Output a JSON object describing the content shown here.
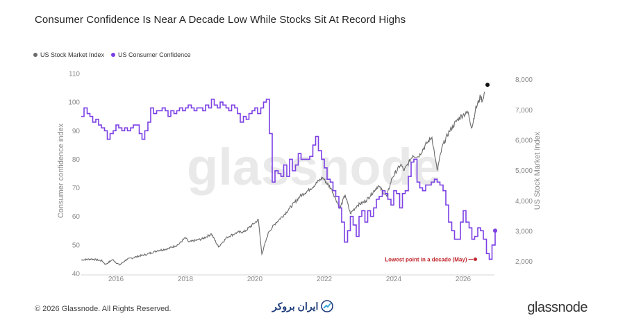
{
  "chart_data": {
    "type": "line",
    "title": "Consumer Confidence Is Near A Decade Low While Stocks Sit At Record Highs",
    "watermark": "glassnode",
    "legend": [
      {
        "name": "US Stock Market Index",
        "color": "#6b6b6b"
      },
      {
        "name": "US Consumer Confidence",
        "color": "#7b3fe4"
      }
    ],
    "legend_position": "top-left",
    "grid": false,
    "x_axis": {
      "ticks": [
        "2016",
        "2018",
        "2020",
        "2022",
        "2024",
        "2026"
      ],
      "range": [
        2015.0,
        2026.9
      ]
    },
    "y_left": {
      "label": "Consumer confidence index",
      "ticks": [
        "40",
        "50",
        "60",
        "70",
        "80",
        "90",
        "100",
        "110"
      ],
      "range": [
        40,
        110
      ]
    },
    "y_right": {
      "label": "US Stock Market Index",
      "ticks": [
        "2,000",
        "3,000",
        "4,000",
        "5,000",
        "6,000",
        "7,000",
        "8,000"
      ],
      "range": [
        1600,
        8200
      ]
    },
    "annotation": {
      "text": "Lowest point in a decade (May)",
      "color": "#c0262d",
      "x": 2026.35,
      "y": 45
    },
    "series": [
      {
        "name": "US Stock Market Index",
        "axis": "right",
        "color": "#6b6b6b",
        "points": [
          [
            2015.0,
            2050
          ],
          [
            2015.3,
            2080
          ],
          [
            2015.6,
            2020
          ],
          [
            2015.7,
            1900
          ],
          [
            2015.9,
            2060
          ],
          [
            2016.1,
            1880
          ],
          [
            2016.3,
            2060
          ],
          [
            2016.6,
            2160
          ],
          [
            2016.9,
            2240
          ],
          [
            2017.2,
            2360
          ],
          [
            2017.5,
            2420
          ],
          [
            2017.8,
            2560
          ],
          [
            2018.0,
            2780
          ],
          [
            2018.1,
            2640
          ],
          [
            2018.5,
            2750
          ],
          [
            2018.75,
            2910
          ],
          [
            2018.95,
            2480
          ],
          [
            2019.2,
            2800
          ],
          [
            2019.5,
            2960
          ],
          [
            2019.7,
            2980
          ],
          [
            2019.95,
            3230
          ],
          [
            2020.1,
            3380
          ],
          [
            2020.2,
            2240
          ],
          [
            2020.4,
            2980
          ],
          [
            2020.6,
            3270
          ],
          [
            2020.85,
            3550
          ],
          [
            2021.0,
            3750
          ],
          [
            2021.3,
            4150
          ],
          [
            2021.6,
            4400
          ],
          [
            2021.95,
            4770
          ],
          [
            2022.2,
            4400
          ],
          [
            2022.45,
            3750
          ],
          [
            2022.6,
            4200
          ],
          [
            2022.75,
            3580
          ],
          [
            2022.95,
            3850
          ],
          [
            2023.2,
            4000
          ],
          [
            2023.55,
            4500
          ],
          [
            2023.8,
            4150
          ],
          [
            2023.95,
            4750
          ],
          [
            2024.2,
            5200
          ],
          [
            2024.3,
            5000
          ],
          [
            2024.55,
            5500
          ],
          [
            2024.7,
            5450
          ],
          [
            2024.95,
            5900
          ],
          [
            2025.1,
            6100
          ],
          [
            2025.25,
            5000
          ],
          [
            2025.4,
            5800
          ],
          [
            2025.6,
            6300
          ],
          [
            2025.85,
            6700
          ],
          [
            2026.0,
            6850
          ],
          [
            2026.15,
            6900
          ],
          [
            2026.25,
            6400
          ],
          [
            2026.35,
            7000
          ],
          [
            2026.5,
            7450
          ],
          [
            2026.55,
            7300
          ],
          [
            2026.62,
            7600
          ]
        ],
        "end_value": 7600
      },
      {
        "name": "US Consumer Confidence",
        "axis": "left",
        "color": "#7b3fe4",
        "points": [
          [
            2015.0,
            95
          ],
          [
            2015.08,
            98
          ],
          [
            2015.17,
            96
          ],
          [
            2015.25,
            95
          ],
          [
            2015.33,
            93
          ],
          [
            2015.42,
            94
          ],
          [
            2015.5,
            92
          ],
          [
            2015.58,
            91
          ],
          [
            2015.67,
            90
          ],
          [
            2015.75,
            87
          ],
          [
            2015.83,
            89
          ],
          [
            2015.92,
            90
          ],
          [
            2016.0,
            92
          ],
          [
            2016.08,
            91
          ],
          [
            2016.17,
            90
          ],
          [
            2016.25,
            91
          ],
          [
            2016.33,
            90
          ],
          [
            2016.42,
            91
          ],
          [
            2016.5,
            92
          ],
          [
            2016.58,
            92
          ],
          [
            2016.67,
            89
          ],
          [
            2016.75,
            87
          ],
          [
            2016.83,
            90
          ],
          [
            2016.92,
            93
          ],
          [
            2017.0,
            98
          ],
          [
            2017.08,
            96
          ],
          [
            2017.17,
            97
          ],
          [
            2017.25,
            97
          ],
          [
            2017.33,
            98
          ],
          [
            2017.42,
            97
          ],
          [
            2017.5,
            95
          ],
          [
            2017.58,
            97
          ],
          [
            2017.67,
            96
          ],
          [
            2017.75,
            97
          ],
          [
            2017.83,
            98
          ],
          [
            2017.92,
            97
          ],
          [
            2018.0,
            98
          ],
          [
            2018.08,
            99
          ],
          [
            2018.17,
            98
          ],
          [
            2018.25,
            97
          ],
          [
            2018.33,
            98
          ],
          [
            2018.42,
            98
          ],
          [
            2018.5,
            97
          ],
          [
            2018.58,
            99
          ],
          [
            2018.67,
            98
          ],
          [
            2018.75,
            101
          ],
          [
            2018.83,
            99
          ],
          [
            2018.92,
            98
          ],
          [
            2019.0,
            100
          ],
          [
            2019.08,
            99
          ],
          [
            2019.17,
            98
          ],
          [
            2019.25,
            97
          ],
          [
            2019.33,
            99
          ],
          [
            2019.42,
            98
          ],
          [
            2019.5,
            96
          ],
          [
            2019.58,
            93
          ],
          [
            2019.67,
            95
          ],
          [
            2019.75,
            94
          ],
          [
            2019.83,
            96
          ],
          [
            2019.92,
            97
          ],
          [
            2020.0,
            98
          ],
          [
            2020.08,
            96
          ],
          [
            2020.17,
            98
          ],
          [
            2020.25,
            100
          ],
          [
            2020.33,
            101
          ],
          [
            2020.42,
            89
          ],
          [
            2020.5,
            72
          ],
          [
            2020.58,
            76
          ],
          [
            2020.67,
            75
          ],
          [
            2020.75,
            74
          ],
          [
            2020.83,
            78
          ],
          [
            2020.92,
            74
          ],
          [
            2021.0,
            80
          ],
          [
            2021.08,
            76
          ],
          [
            2021.17,
            78
          ],
          [
            2021.25,
            82
          ],
          [
            2021.33,
            80
          ],
          [
            2021.42,
            80
          ],
          [
            2021.5,
            80
          ],
          [
            2021.58,
            81
          ],
          [
            2021.67,
            85
          ],
          [
            2021.75,
            88
          ],
          [
            2021.83,
            83
          ],
          [
            2021.92,
            80
          ],
          [
            2022.0,
            77
          ],
          [
            2022.08,
            73
          ],
          [
            2022.17,
            72
          ],
          [
            2022.25,
            69
          ],
          [
            2022.33,
            67
          ],
          [
            2022.42,
            63
          ],
          [
            2022.5,
            58
          ],
          [
            2022.58,
            51
          ],
          [
            2022.67,
            55
          ],
          [
            2022.75,
            60
          ],
          [
            2022.83,
            57
          ],
          [
            2022.92,
            53
          ],
          [
            2023.0,
            60
          ],
          [
            2023.08,
            62
          ],
          [
            2023.17,
            58
          ],
          [
            2023.25,
            62
          ],
          [
            2023.33,
            60
          ],
          [
            2023.42,
            63
          ],
          [
            2023.5,
            66
          ],
          [
            2023.58,
            67
          ],
          [
            2023.67,
            69
          ],
          [
            2023.75,
            68
          ],
          [
            2023.83,
            66
          ],
          [
            2023.92,
            64
          ],
          [
            2024.0,
            69
          ],
          [
            2024.08,
            68
          ],
          [
            2024.17,
            63
          ],
          [
            2024.25,
            68
          ],
          [
            2024.33,
            69
          ],
          [
            2024.42,
            74
          ],
          [
            2024.5,
            79
          ],
          [
            2024.58,
            80
          ],
          [
            2024.67,
            72
          ],
          [
            2024.75,
            70
          ],
          [
            2024.83,
            69
          ],
          [
            2024.92,
            71
          ],
          [
            2025.0,
            71
          ],
          [
            2025.08,
            72
          ],
          [
            2025.17,
            73
          ],
          [
            2025.25,
            72
          ],
          [
            2025.33,
            71
          ],
          [
            2025.42,
            69
          ],
          [
            2025.5,
            64
          ],
          [
            2025.58,
            58
          ],
          [
            2025.67,
            55
          ],
          [
            2025.75,
            52
          ],
          [
            2025.83,
            52
          ],
          [
            2025.92,
            58
          ],
          [
            2026.0,
            62
          ],
          [
            2026.08,
            58
          ],
          [
            2026.17,
            56
          ],
          [
            2026.25,
            52
          ],
          [
            2026.33,
            53
          ],
          [
            2026.42,
            56
          ],
          [
            2026.5,
            55
          ],
          [
            2026.58,
            52
          ],
          [
            2026.67,
            47
          ],
          [
            2026.75,
            45
          ],
          [
            2026.83,
            50
          ],
          [
            2026.92,
            55
          ]
        ],
        "end_value": 55
      }
    ]
  },
  "footer": {
    "copyright": "© 2026 Glassnode. All Rights Reserved.",
    "partner_logo_text": "ایران بروکر",
    "brand": "glassnode"
  }
}
